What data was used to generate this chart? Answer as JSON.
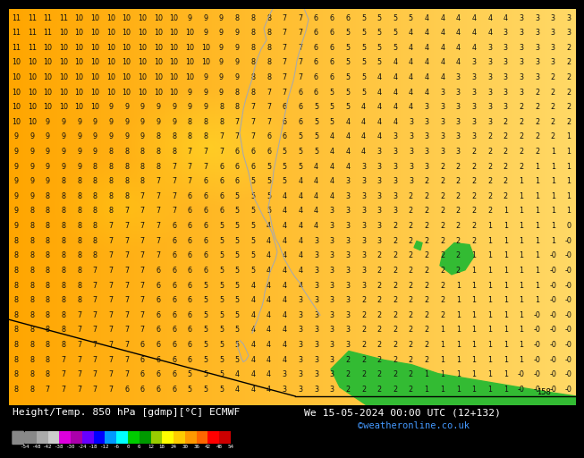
{
  "title_left": "Height/Temp. 850 hPa [gdmp][°C] ECMWF",
  "title_right": "We 15-05-2024 00:00 UTC (12+132)",
  "credit": "©weatheronline.co.uk",
  "colorbar_colors": [
    "#888888",
    "#aaaaaa",
    "#cccccc",
    "#dd00dd",
    "#aa00aa",
    "#6600ff",
    "#0000ff",
    "#0099ff",
    "#00ffff",
    "#00cc00",
    "#009900",
    "#99cc00",
    "#ffff00",
    "#ffcc00",
    "#ff9900",
    "#ff6600",
    "#ff0000",
    "#cc0000"
  ],
  "colorbar_ticks": [
    "-54",
    "-48",
    "-42",
    "-38",
    "-30",
    "-24",
    "-18",
    "-12",
    "-6",
    "0",
    "6",
    "12",
    "18",
    "24",
    "30",
    "36",
    "42",
    "48",
    "54"
  ],
  "bg_warm": "#ffaa00",
  "bg_mid": "#ffcc44",
  "bg_cool": "#ffee88",
  "text_dark": "#111111",
  "contour_black": "#000000",
  "contour_gray": "#aaaaaa",
  "green_cold": "#33bb33",
  "label_158": "158",
  "bottom_bg": "#000000",
  "bottom_text": "#ffffff",
  "credit_color": "#4499ff"
}
